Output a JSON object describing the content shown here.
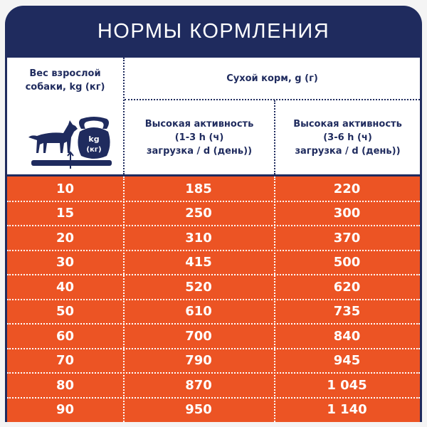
{
  "title": "НОРМЫ КОРМЛЕНИЯ",
  "colors": {
    "navy": "#1f2b5e",
    "orange": "#ec5424"
  },
  "header": {
    "weight_label_line1": "Вес взрослой",
    "weight_label_line2": "собаки, kg (кг)",
    "dry_food_label": "Сухой корм, g (г)",
    "col2_line1": "Высокая активность",
    "col2_line2": "(1-3 h (ч)",
    "col2_line3": "загрузка / d (день))",
    "col3_line1": "Высокая активность",
    "col3_line2": "(3-6 h (ч)",
    "col3_line3": "загрузка / d (день))",
    "icon": {
      "name": "dog-on-scale-kettlebell-icon",
      "kettlebell_line1": "kg",
      "kettlebell_line2": "(кг)"
    }
  },
  "rows": [
    [
      "10",
      "185",
      "220"
    ],
    [
      "15",
      "250",
      "300"
    ],
    [
      "20",
      "310",
      "370"
    ],
    [
      "30",
      "415",
      "500"
    ],
    [
      "40",
      "520",
      "620"
    ],
    [
      "50",
      "610",
      "735"
    ],
    [
      "60",
      "700",
      "840"
    ],
    [
      "70",
      "790",
      "945"
    ],
    [
      "80",
      "870",
      "1 045"
    ],
    [
      "90",
      "950",
      "1 140"
    ]
  ]
}
